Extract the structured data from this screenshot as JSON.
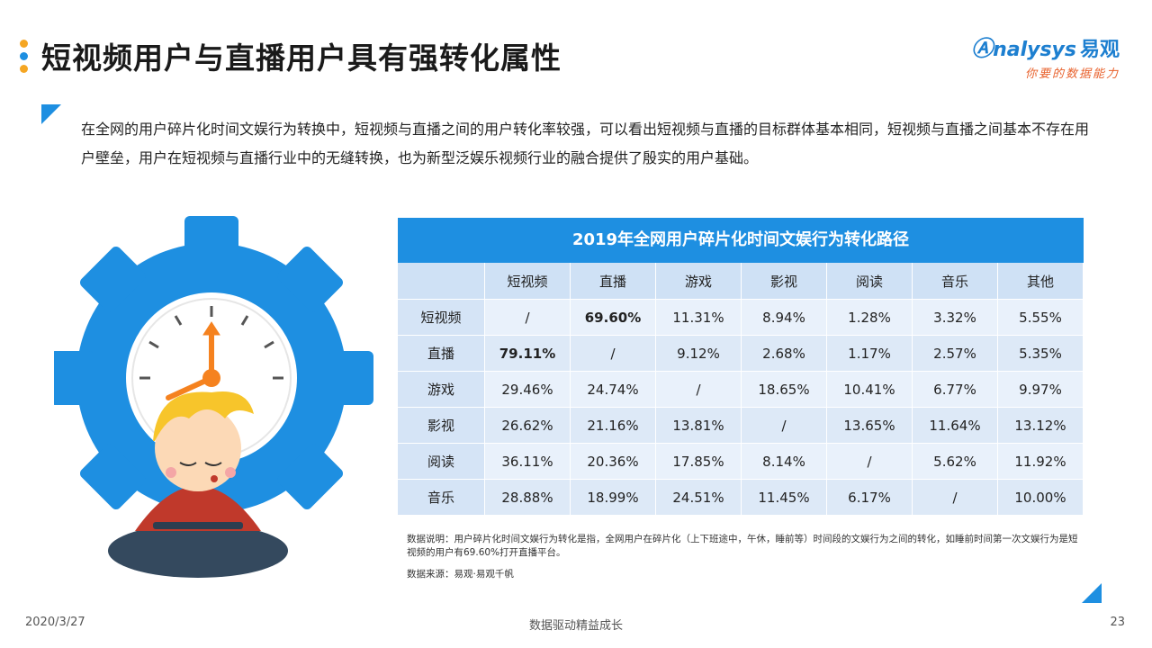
{
  "header": {
    "title": "短视频用户与直播用户具有强转化属性",
    "dot_colors": [
      "#f5a623",
      "#1e8fe1",
      "#f5a623"
    ]
  },
  "logo": {
    "brand": "nalysys",
    "brand_cn": "易观",
    "tagline": "你要的数据能力"
  },
  "intro": {
    "text": "在全网的用户碎片化时间文娱行为转换中，短视频与直播之间的用户转化率较强，可以看出短视频与直播的目标群体基本相同，短视频与直播之间基本不存在用户壁垒，用户在短视频与直播行业中的无缝转换，也为新型泛娱乐视频行业的融合提供了殷实的用户基础。"
  },
  "table": {
    "title": "2019年全网用户碎片化时间文娱行为转化路径",
    "columns": [
      "",
      "短视频",
      "直播",
      "游戏",
      "影视",
      "阅读",
      "音乐",
      "其他"
    ],
    "rows": [
      {
        "label": "短视频",
        "cells": [
          "/",
          "69.60%",
          "11.31%",
          "8.94%",
          "1.28%",
          "3.32%",
          "5.55%"
        ]
      },
      {
        "label": "直播",
        "cells": [
          "79.11%",
          "/",
          "9.12%",
          "2.68%",
          "1.17%",
          "2.57%",
          "5.35%"
        ]
      },
      {
        "label": "游戏",
        "cells": [
          "29.46%",
          "24.74%",
          "/",
          "18.65%",
          "10.41%",
          "6.77%",
          "9.97%"
        ]
      },
      {
        "label": "影视",
        "cells": [
          "26.62%",
          "21.16%",
          "13.81%",
          "/",
          "13.65%",
          "11.64%",
          "13.12%"
        ]
      },
      {
        "label": "阅读",
        "cells": [
          "36.11%",
          "20.36%",
          "17.85%",
          "8.14%",
          "/",
          "5.62%",
          "11.92%"
        ]
      },
      {
        "label": "音乐",
        "cells": [
          "28.88%",
          "18.99%",
          "24.51%",
          "11.45%",
          "6.17%",
          "/",
          "10.00%"
        ]
      }
    ],
    "accent_color": "#1e8fe1"
  },
  "notes": {
    "explanation": "数据说明：用户碎片化时间文娱行为转化是指，全网用户在碎片化（上下班途中，午休，睡前等）时间段的文娱行为之间的转化，如睡前时间第一次文娱行为是短视频的用户有69.60%打开直播平台。",
    "source": "数据来源：易观·易观千帆"
  },
  "footer": {
    "date": "2020/3/27",
    "slogan": "数据驱动精益成长",
    "page": "23"
  },
  "illustration": {
    "icon": "gear-clock-person-illustration",
    "gear_color": "#1e8fe1"
  }
}
